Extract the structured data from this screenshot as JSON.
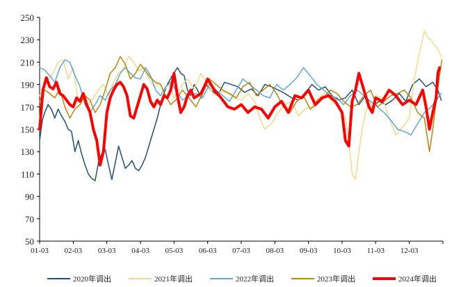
{
  "chart_data": {
    "type": "line",
    "title": "",
    "xlabel": "",
    "ylabel": "",
    "ylim": [
      50,
      250
    ],
    "y_ticks": [
      50,
      70,
      90,
      110,
      130,
      150,
      170,
      190,
      210,
      230,
      250
    ],
    "categories": [
      "01-03",
      "02-03",
      "03-03",
      "04-03",
      "05-03",
      "06-03",
      "07-03",
      "08-03",
      "09-03",
      "10-03",
      "11-03",
      "12-03"
    ],
    "x_index_range": [
      0,
      12
    ],
    "grid": false,
    "legend_position": "bottom",
    "series": [
      {
        "name": "2020年调出",
        "color": "#1f4e79",
        "width": 1.5,
        "x": [
          0,
          0.08,
          0.15,
          0.25,
          0.35,
          0.45,
          0.55,
          0.65,
          0.75,
          0.85,
          0.95,
          1.05,
          1.15,
          1.25,
          1.35,
          1.45,
          1.55,
          1.65,
          1.75,
          1.85,
          1.95,
          2.05,
          2.15,
          2.25,
          2.35,
          2.45,
          2.55,
          2.65,
          2.75,
          2.85,
          2.95,
          3.05,
          3.15,
          3.25,
          3.35,
          3.5,
          3.65,
          3.8,
          3.95,
          4.1,
          4.2,
          4.3,
          4.4,
          4.5,
          4.6,
          4.7,
          4.8,
          4.95,
          5.1,
          5.3,
          5.5,
          5.7,
          5.9,
          6.1,
          6.3,
          6.5,
          6.7,
          6.9,
          7.1,
          7.3,
          7.5,
          7.7,
          7.9,
          8.1,
          8.3,
          8.5,
          8.7,
          8.9,
          9.1,
          9.3,
          9.5,
          9.7,
          9.9,
          10.1,
          10.3,
          10.5,
          10.7,
          10.9,
          11.1,
          11.3,
          11.5,
          11.7,
          11.85,
          11.95
        ],
        "values": [
          140,
          158,
          165,
          172,
          168,
          160,
          168,
          162,
          157,
          150,
          148,
          130,
          140,
          128,
          118,
          110,
          106,
          104,
          120,
          128,
          132,
          118,
          105,
          120,
          135,
          125,
          115,
          118,
          122,
          115,
          113,
          118,
          125,
          135,
          145,
          160,
          178,
          190,
          198,
          205,
          200,
          198,
          185,
          180,
          190,
          185,
          178,
          190,
          185,
          180,
          192,
          190,
          188,
          183,
          186,
          180,
          190,
          188,
          185,
          182,
          178,
          176,
          182,
          190,
          185,
          188,
          180,
          176,
          178,
          185,
          172,
          180,
          170,
          175,
          172,
          176,
          182,
          175,
          190,
          195,
          188,
          192,
          185,
          176
        ]
      },
      {
        "name": "2021年调出",
        "color": "#f5d98a",
        "width": 1.5,
        "x": [
          0,
          0.2,
          0.4,
          0.55,
          0.7,
          0.85,
          1.0,
          1.15,
          1.3,
          1.45,
          1.6,
          1.75,
          1.9,
          2.05,
          2.2,
          2.35,
          2.5,
          2.65,
          2.8,
          2.95,
          3.1,
          3.25,
          3.4,
          3.55,
          3.7,
          3.85,
          4.0,
          4.2,
          4.4,
          4.6,
          4.8,
          5.0,
          5.2,
          5.4,
          5.6,
          5.8,
          6.0,
          6.2,
          6.4,
          6.55,
          6.7,
          6.9,
          7.1,
          7.3,
          7.5,
          7.7,
          7.9,
          8.1,
          8.3,
          8.5,
          8.7,
          8.9,
          9.1,
          9.2,
          9.3,
          9.4,
          9.5,
          9.6,
          9.7,
          9.8,
          9.9,
          10.0,
          10.2,
          10.4,
          10.6,
          10.8,
          11.0,
          11.15,
          11.3,
          11.45,
          11.55,
          11.65,
          11.75,
          11.85,
          11.95
        ],
        "values": [
          180,
          192,
          200,
          210,
          212,
          195,
          205,
          175,
          180,
          172,
          178,
          185,
          190,
          180,
          192,
          200,
          205,
          215,
          210,
          202,
          206,
          195,
          188,
          192,
          185,
          190,
          178,
          188,
          195,
          186,
          200,
          190,
          180,
          184,
          182,
          178,
          176,
          182,
          175,
          160,
          150,
          155,
          165,
          172,
          175,
          162,
          168,
          170,
          178,
          182,
          175,
          170,
          160,
          140,
          110,
          105,
          130,
          150,
          165,
          175,
          170,
          180,
          178,
          160,
          145,
          152,
          160,
          195,
          218,
          238,
          232,
          230,
          225,
          222,
          215
        ]
      },
      {
        "name": "2022年调出",
        "color": "#5aa9d6",
        "width": 1.5,
        "x": [
          0,
          0.15,
          0.3,
          0.45,
          0.6,
          0.75,
          0.9,
          1.05,
          1.2,
          1.35,
          1.5,
          1.65,
          1.8,
          1.95,
          2.1,
          2.25,
          2.4,
          2.55,
          2.7,
          2.85,
          3.0,
          3.15,
          3.3,
          3.45,
          3.6,
          3.75,
          3.9,
          4.05,
          4.25,
          4.45,
          4.65,
          4.85,
          5.05,
          5.25,
          5.45,
          5.65,
          5.85,
          6.05,
          6.25,
          6.45,
          6.65,
          6.85,
          7.05,
          7.25,
          7.45,
          7.65,
          7.85,
          8.05,
          8.25,
          8.45,
          8.65,
          8.85,
          9.05,
          9.25,
          9.45,
          9.65,
          9.85,
          10.05,
          10.25,
          10.45,
          10.65,
          10.85,
          11.05,
          11.25,
          11.45,
          11.65,
          11.85,
          11.95
        ],
        "values": [
          205,
          203,
          198,
          192,
          205,
          212,
          210,
          198,
          188,
          172,
          165,
          172,
          180,
          176,
          185,
          190,
          200,
          205,
          200,
          196,
          195,
          205,
          198,
          185,
          180,
          188,
          192,
          185,
          176,
          180,
          182,
          178,
          190,
          185,
          180,
          175,
          185,
          195,
          190,
          185,
          180,
          178,
          190,
          185,
          190,
          196,
          205,
          198,
          190,
          185,
          180,
          178,
          172,
          180,
          185,
          180,
          175,
          170,
          165,
          158,
          150,
          148,
          145,
          155,
          165,
          170,
          178,
          182
        ]
      },
      {
        "name": "2023年调出",
        "color": "#b8860b",
        "width": 1.5,
        "x": [
          0,
          0.15,
          0.3,
          0.45,
          0.6,
          0.75,
          0.9,
          1.05,
          1.2,
          1.35,
          1.5,
          1.65,
          1.8,
          1.95,
          2.1,
          2.25,
          2.4,
          2.55,
          2.7,
          2.85,
          3.0,
          3.15,
          3.3,
          3.45,
          3.6,
          3.75,
          3.9,
          4.05,
          4.25,
          4.45,
          4.65,
          4.85,
          5.05,
          5.25,
          5.45,
          5.65,
          5.85,
          6.05,
          6.25,
          6.45,
          6.65,
          6.85,
          7.05,
          7.25,
          7.45,
          7.65,
          7.85,
          8.05,
          8.25,
          8.45,
          8.65,
          8.85,
          9.05,
          9.25,
          9.45,
          9.65,
          9.85,
          10.05,
          10.25,
          10.45,
          10.65,
          10.85,
          11.05,
          11.25,
          11.45,
          11.6,
          11.7,
          11.8,
          11.9,
          11.97
        ],
        "values": [
          175,
          185,
          182,
          178,
          186,
          170,
          160,
          168,
          172,
          180,
          176,
          165,
          172,
          185,
          200,
          205,
          215,
          208,
          195,
          200,
          208,
          202,
          196,
          192,
          190,
          180,
          172,
          176,
          185,
          178,
          170,
          182,
          195,
          190,
          185,
          182,
          178,
          188,
          192,
          180,
          185,
          190,
          182,
          170,
          165,
          175,
          180,
          168,
          172,
          178,
          185,
          182,
          175,
          170,
          172,
          180,
          185,
          170,
          175,
          180,
          182,
          185,
          178,
          165,
          160,
          130,
          150,
          175,
          198,
          212
        ]
      },
      {
        "name": "2024年调出",
        "color": "#ff0000",
        "width": 4,
        "x": [
          0,
          0.1,
          0.2,
          0.3,
          0.4,
          0.5,
          0.6,
          0.7,
          0.8,
          0.9,
          1.0,
          1.1,
          1.2,
          1.3,
          1.4,
          1.5,
          1.6,
          1.7,
          1.8,
          1.9,
          2.0,
          2.1,
          2.2,
          2.3,
          2.4,
          2.5,
          2.6,
          2.7,
          2.8,
          2.9,
          3.0,
          3.1,
          3.2,
          3.3,
          3.4,
          3.5,
          3.6,
          3.7,
          3.8,
          3.9,
          4.0,
          4.1,
          4.2,
          4.3,
          4.4,
          4.5,
          4.6,
          4.7,
          4.8,
          4.9,
          5.0,
          5.2,
          5.4,
          5.6,
          5.8,
          6.0,
          6.2,
          6.4,
          6.6,
          6.8,
          7.0,
          7.2,
          7.4,
          7.6,
          7.8,
          8.0,
          8.2,
          8.4,
          8.6,
          8.8,
          9.0,
          9.1,
          9.2,
          9.3,
          9.4,
          9.5,
          9.6,
          9.7,
          9.8,
          9.9,
          10.0,
          10.2,
          10.4,
          10.6,
          10.8,
          11.0,
          11.2,
          11.4,
          11.5,
          11.6,
          11.7,
          11.8,
          11.85,
          11.9
        ],
        "values": [
          150,
          185,
          196,
          188,
          186,
          192,
          182,
          180,
          176,
          172,
          170,
          178,
          175,
          182,
          172,
          165,
          150,
          140,
          118,
          130,
          165,
          178,
          185,
          190,
          192,
          188,
          180,
          162,
          160,
          170,
          180,
          190,
          186,
          175,
          170,
          176,
          172,
          180,
          178,
          185,
          200,
          180,
          165,
          170,
          180,
          185,
          178,
          180,
          182,
          188,
          195,
          185,
          178,
          170,
          168,
          172,
          165,
          170,
          168,
          160,
          170,
          175,
          165,
          180,
          178,
          185,
          172,
          178,
          180,
          175,
          165,
          140,
          135,
          175,
          185,
          200,
          190,
          180,
          170,
          165,
          178,
          175,
          185,
          180,
          172,
          176,
          172,
          185,
          170,
          150,
          165,
          178,
          200,
          205
        ]
      }
    ]
  }
}
